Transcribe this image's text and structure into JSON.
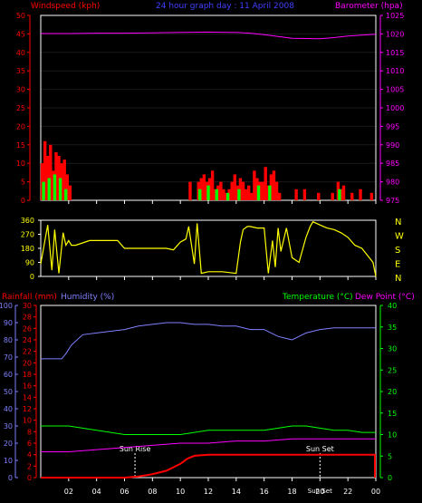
{
  "colors": {
    "red": "#ff0000",
    "magenta": "#ff00ff",
    "yellow": "#ffff00",
    "green": "#00ff00",
    "blue": "#4040ff",
    "orange": "#ffa000",
    "dkred": "#aa0000",
    "dkmagenta": "#aa00aa",
    "dkgreen": "#00aa00",
    "lightblue": "#8080ff",
    "white": "#ffffff",
    "grey": "#999999"
  },
  "header": {
    "windspeed": "Windspeed (kph)",
    "center": "24 hour graph day : 11 April 2008",
    "barometer": "Barometer (hpa)"
  },
  "panel3_header": {
    "rainfall": "Rainfall (mm)",
    "humidity": "Humidity (%)",
    "temperature": "Temperature (°C)",
    "dewpoint": "Dew Point (°C)"
  },
  "time_ticks": [
    "02",
    "04",
    "06",
    "08",
    "10",
    "12",
    "14",
    "16",
    "18",
    "20",
    "22",
    "00"
  ],
  "compass": [
    "N",
    "W",
    "S",
    "E",
    "N"
  ],
  "sun_labels": {
    "rise": "Sun Rise",
    "set": "Sun Set",
    "bottom": "Sun Set"
  },
  "chart_data": [
    {
      "type": "bar",
      "title": "24 hour graph day : 11 April 2008",
      "x_range_hours": [
        0,
        24
      ],
      "left_axis": {
        "label": "Windspeed (kph)",
        "range": [
          0,
          50
        ],
        "ticks": [
          "0",
          "5",
          "10",
          "15",
          "20",
          "25",
          "30",
          "35",
          "40",
          "45",
          "50"
        ]
      },
      "right_axis": {
        "label": "Barometer (hpa)",
        "range": [
          975,
          1025
        ],
        "ticks": [
          "975",
          "980",
          "985",
          "990",
          "995",
          "1000",
          "1005",
          "1010",
          "1015",
          "1020",
          "1025"
        ]
      },
      "series": [
        {
          "name": "Windspeed (kph)",
          "type": "bar",
          "x": [
            0.1,
            0.3,
            0.5,
            0.7,
            0.9,
            1.1,
            1.3,
            1.5,
            1.7,
            1.9,
            2.1,
            10.7,
            11.3,
            11.5,
            11.7,
            11.9,
            12.1,
            12.3,
            12.5,
            12.7,
            12.9,
            13.1,
            13.3,
            13.5,
            13.7,
            13.9,
            14.1,
            14.3,
            14.5,
            14.7,
            14.9,
            15.1,
            15.3,
            15.5,
            15.7,
            15.9,
            16.1,
            16.3,
            16.5,
            16.7,
            16.9,
            17.1,
            18.3,
            18.9,
            19.9,
            20.9,
            21.3,
            21.5,
            21.7,
            22.3,
            22.9,
            23.7
          ],
          "values": [
            10,
            16,
            12,
            15,
            8,
            13,
            12,
            10,
            11,
            7,
            4,
            5,
            5,
            6,
            7,
            5,
            6,
            8,
            3,
            4,
            5,
            3,
            2,
            3,
            5,
            7,
            4,
            6,
            5,
            3,
            4,
            2,
            8,
            6,
            5,
            5,
            9,
            4,
            7,
            8,
            5,
            2,
            3,
            3,
            2,
            2,
            5,
            3,
            4,
            2,
            3,
            2
          ]
        },
        {
          "name": "Gust",
          "type": "bar",
          "x": [
            0.2,
            0.6,
            1.0,
            1.4,
            1.8,
            11.4,
            12.0,
            12.6,
            13.4,
            14.2,
            15.6,
            16.4,
            21.4
          ],
          "values": [
            5,
            6,
            7,
            6,
            3,
            3,
            4,
            3,
            2,
            3,
            4,
            4,
            3
          ]
        },
        {
          "name": "Barometer (hpa)",
          "type": "line",
          "x": [
            0,
            2,
            4,
            6,
            8,
            10,
            12,
            14,
            15,
            16,
            17,
            18,
            20,
            21,
            22,
            24
          ],
          "values": [
            1020.1,
            1020.1,
            1020.2,
            1020.2,
            1020.3,
            1020.4,
            1020.5,
            1020.4,
            1020.2,
            1019.8,
            1019.3,
            1018.8,
            1018.7,
            1019.0,
            1019.4,
            1019.9
          ]
        }
      ]
    },
    {
      "type": "line",
      "x_range_hours": [
        0,
        24
      ],
      "left_axis": {
        "label": "",
        "range": [
          0,
          360
        ],
        "ticks": [
          "0",
          "90",
          "180",
          "270",
          "360"
        ]
      },
      "right_axis": {
        "label": "",
        "ticks": [
          "N",
          "W",
          "S",
          "E",
          "N"
        ]
      },
      "series": [
        {
          "name": "Wind direction",
          "x": [
            0,
            0.5,
            0.8,
            1.0,
            1.3,
            1.6,
            1.8,
            2.0,
            2.2,
            2.5,
            3.5,
            5.5,
            6.0,
            7.0,
            8.0,
            8.5,
            9.0,
            9.5,
            10.0,
            10.4,
            10.6,
            11.0,
            11.2,
            11.5,
            12.0,
            13.0,
            14.0,
            14.3,
            14.5,
            14.8,
            15.0,
            15.5,
            16.0,
            16.3,
            16.6,
            16.8,
            17.0,
            17.2,
            17.6,
            18.0,
            18.5,
            19.0,
            19.3,
            19.5,
            20.0,
            20.5,
            21.0,
            21.5,
            22.0,
            22.5,
            23.0,
            23.8,
            24.0
          ],
          "values": [
            80,
            330,
            40,
            300,
            20,
            280,
            200,
            230,
            200,
            200,
            230,
            230,
            180,
            180,
            180,
            180,
            180,
            170,
            220,
            240,
            320,
            80,
            340,
            20,
            30,
            30,
            20,
            220,
            300,
            320,
            320,
            310,
            310,
            20,
            230,
            60,
            310,
            160,
            310,
            120,
            90,
            250,
            320,
            350,
            330,
            310,
            300,
            280,
            250,
            200,
            180,
            90,
            0
          ]
        }
      ]
    },
    {
      "type": "line",
      "x_range_hours": [
        0,
        24
      ],
      "axes": {
        "humidity": {
          "label": "Humidity (%)",
          "range": [
            0,
            100
          ],
          "ticks": [
            "0",
            "10",
            "20",
            "30",
            "40",
            "50",
            "60",
            "70",
            "80",
            "90",
            "100"
          ]
        },
        "rainfall": {
          "label": "Rainfall (mm)",
          "range": [
            0,
            30
          ],
          "ticks": [
            "0",
            "2",
            "4",
            "6",
            "8",
            "10",
            "12",
            "14",
            "16",
            "18",
            "20",
            "22",
            "24",
            "26",
            "28",
            "30"
          ]
        },
        "temperature": {
          "label": "Temperature (°C)",
          "range": [
            0,
            40
          ],
          "ticks": [
            "0",
            "5",
            "10",
            "15",
            "20",
            "25",
            "30",
            "35",
            "40"
          ]
        }
      },
      "series": [
        {
          "name": "Humidity (%)",
          "axis": "humidity",
          "x": [
            0,
            1.5,
            1.8,
            2.2,
            3,
            4,
            5,
            6,
            7,
            8,
            9,
            10,
            11,
            12,
            13,
            14,
            15,
            16,
            16.5,
            17,
            17.5,
            18,
            18.5,
            19,
            20,
            21,
            22,
            23,
            24
          ],
          "values": [
            69,
            69,
            72,
            77,
            83,
            84,
            85,
            86,
            88,
            89,
            90,
            90,
            89,
            89,
            88,
            88,
            86,
            86,
            84,
            82,
            81,
            80,
            82,
            84,
            86,
            87,
            87,
            87,
            87
          ]
        },
        {
          "name": "Temperature (°C)",
          "axis": "temperature",
          "x": [
            0,
            2,
            4,
            6,
            8,
            10,
            12,
            14,
            16,
            17,
            18,
            19,
            20,
            21,
            22,
            23,
            24
          ],
          "values": [
            12,
            12,
            11,
            10,
            10,
            10,
            11,
            11,
            11,
            11.5,
            12,
            12,
            11.5,
            11,
            11,
            10.5,
            10.5
          ]
        },
        {
          "name": "Dew Point (°C)",
          "axis": "temperature",
          "x": [
            0,
            2,
            4,
            6,
            8,
            10,
            12,
            14,
            16,
            18,
            20,
            22,
            24
          ],
          "values": [
            6,
            6,
            6.5,
            7,
            7.5,
            8,
            8,
            8.5,
            8.5,
            9,
            9,
            9,
            9
          ]
        },
        {
          "name": "Rainfall (mm)",
          "axis": "rainfall",
          "x": [
            0,
            6,
            7,
            8,
            9,
            10,
            10.5,
            11,
            12,
            13,
            24
          ],
          "values": [
            0,
            0,
            0.2,
            0.6,
            1.2,
            2.4,
            3.3,
            3.8,
            4,
            4,
            4
          ]
        }
      ],
      "markers": {
        "sun_rise_hour": 6.75,
        "sun_set_hour": 20.0
      }
    }
  ]
}
